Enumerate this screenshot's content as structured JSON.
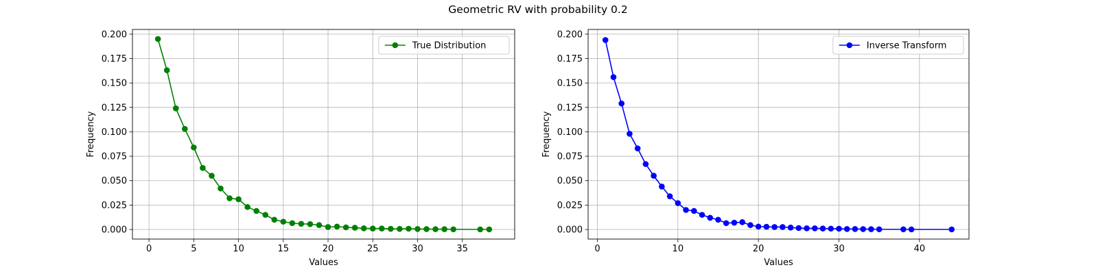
{
  "title": "Geometric RV with probability 0.2",
  "chart_data": [
    {
      "type": "line",
      "xlabel": "Values",
      "ylabel": "Frequency",
      "xlim": [
        -1.85,
        40.85
      ],
      "ylim": [
        -0.0098,
        0.2048
      ],
      "xticks": [
        0,
        5,
        10,
        15,
        20,
        25,
        30,
        35
      ],
      "yticks": [
        0.0,
        0.025,
        0.05,
        0.075,
        0.1,
        0.125,
        0.15,
        0.175,
        0.2
      ],
      "ytick_labels": [
        "0.000",
        "0.025",
        "0.050",
        "0.075",
        "0.100",
        "0.125",
        "0.150",
        "0.175",
        "0.200"
      ],
      "grid": true,
      "legend_position": "upper right",
      "series": [
        {
          "name": "True Distribution",
          "color": "#008000",
          "marker": "circle",
          "x": [
            1,
            2,
            3,
            4,
            5,
            6,
            7,
            8,
            9,
            10,
            11,
            12,
            13,
            14,
            15,
            16,
            17,
            18,
            19,
            20,
            21,
            22,
            23,
            24,
            25,
            26,
            27,
            28,
            29,
            30,
            31,
            32,
            33,
            34,
            37,
            38
          ],
          "y": [
            0.195,
            0.163,
            0.124,
            0.103,
            0.084,
            0.063,
            0.055,
            0.042,
            0.032,
            0.031,
            0.023,
            0.019,
            0.015,
            0.01,
            0.008,
            0.0065,
            0.0058,
            0.0055,
            0.0045,
            0.0025,
            0.003,
            0.0022,
            0.0018,
            0.0012,
            0.001,
            0.001,
            0.0007,
            0.0006,
            0.0008,
            0.0005,
            0.0004,
            0.0003,
            0.0003,
            0.0002,
            0.0001,
            0.0001
          ]
        }
      ]
    },
    {
      "type": "line",
      "xlabel": "Values",
      "ylabel": "Frequency",
      "xlim": [
        -1.15,
        46.15
      ],
      "ylim": [
        -0.0098,
        0.2048
      ],
      "xticks": [
        0,
        10,
        20,
        30,
        40
      ],
      "yticks": [
        0.0,
        0.025,
        0.05,
        0.075,
        0.1,
        0.125,
        0.15,
        0.175,
        0.2
      ],
      "ytick_labels": [
        "0.000",
        "0.025",
        "0.050",
        "0.075",
        "0.100",
        "0.125",
        "0.150",
        "0.175",
        "0.200"
      ],
      "grid": true,
      "legend_position": "upper right",
      "series": [
        {
          "name": "Inverse Transform",
          "color": "#0000ff",
          "marker": "circle",
          "x": [
            1,
            2,
            3,
            4,
            5,
            6,
            7,
            8,
            9,
            10,
            11,
            12,
            13,
            14,
            15,
            16,
            17,
            18,
            19,
            20,
            21,
            22,
            23,
            24,
            25,
            26,
            27,
            28,
            29,
            30,
            31,
            32,
            33,
            34,
            35,
            38,
            39,
            44
          ],
          "y": [
            0.194,
            0.156,
            0.129,
            0.098,
            0.083,
            0.067,
            0.055,
            0.044,
            0.034,
            0.027,
            0.02,
            0.019,
            0.015,
            0.012,
            0.01,
            0.0065,
            0.007,
            0.0075,
            0.0045,
            0.003,
            0.0028,
            0.0025,
            0.0025,
            0.002,
            0.0015,
            0.0012,
            0.0012,
            0.001,
            0.0009,
            0.0008,
            0.0005,
            0.0005,
            0.0004,
            0.0003,
            0.0002,
            0.0002,
            0.0001,
            0.0001
          ]
        }
      ]
    }
  ]
}
